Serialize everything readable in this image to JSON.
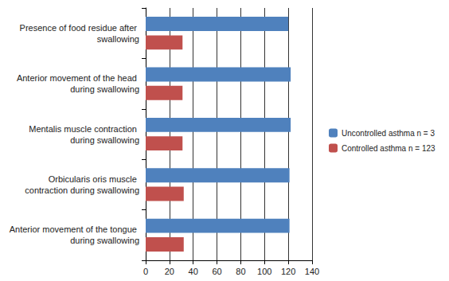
{
  "chart_data": {
    "type": "bar",
    "orientation": "horizontal",
    "categories": [
      "Anterior movement of the tongue during swallowing",
      "Orbicularis oris muscle contraction during swallowing",
      "Mentalis muscle contraction during swallowing",
      "Anterior movement of the head during swallowing",
      "Presence of food residue after swallowing"
    ],
    "series": [
      {
        "name": "Uncontrolled asthma n = 3",
        "color": "#4f81bd",
        "values": [
          121,
          121,
          122,
          122,
          120
        ]
      },
      {
        "name": "Controlled asthma n = 123",
        "color": "#c0504d",
        "values": [
          32,
          32,
          31,
          31,
          31
        ]
      }
    ],
    "xlim": [
      0,
      140
    ],
    "xticks": [
      0,
      20,
      40,
      60,
      80,
      100,
      120,
      140
    ],
    "grid": true,
    "legend": "right"
  }
}
